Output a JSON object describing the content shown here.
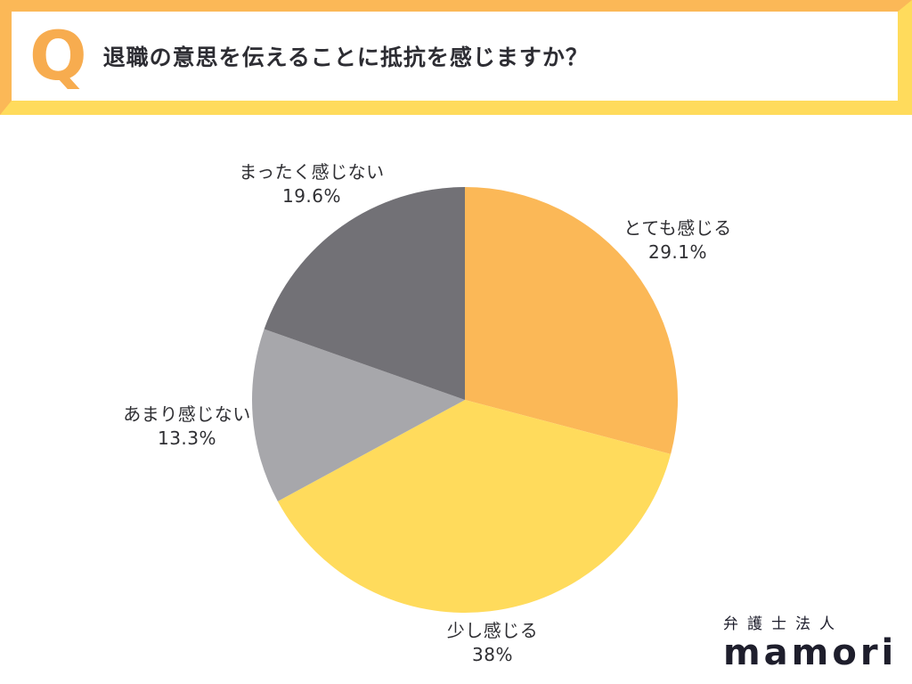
{
  "header": {
    "q_mark": "Q",
    "title": "退職の意思を伝えることに抵抗を感じますか？"
  },
  "chart_data": {
    "type": "pie",
    "title": "退職の意思を伝えることに抵抗を感じますか？",
    "start_angle_deg": 0,
    "direction": "clockwise",
    "legend_position": "outside-labels",
    "slices": [
      {
        "label": "とても感じる",
        "value": 29.1,
        "pct_label": "29.1%",
        "color": "#FBB857"
      },
      {
        "label": "少し感じる",
        "value": 38,
        "pct_label": "38%",
        "color": "#FFDB5C"
      },
      {
        "label": "あまり感じない",
        "value": 13.3,
        "pct_label": "13.3%",
        "color": "#A7A7AB"
      },
      {
        "label": "まったく感じない",
        "value": 19.6,
        "pct_label": "19.6%",
        "color": "#727176"
      }
    ]
  },
  "footer": {
    "logo_top": "弁護士法人",
    "logo_main": "mamori"
  },
  "colors": {
    "accent_orange": "#FBB857",
    "accent_yellow": "#FFDB5C",
    "slice_gray_light": "#A7A7AB",
    "slice_gray_dark": "#727176",
    "text_dark": "#2D2D33",
    "logo_dark": "#1E1E2C"
  }
}
